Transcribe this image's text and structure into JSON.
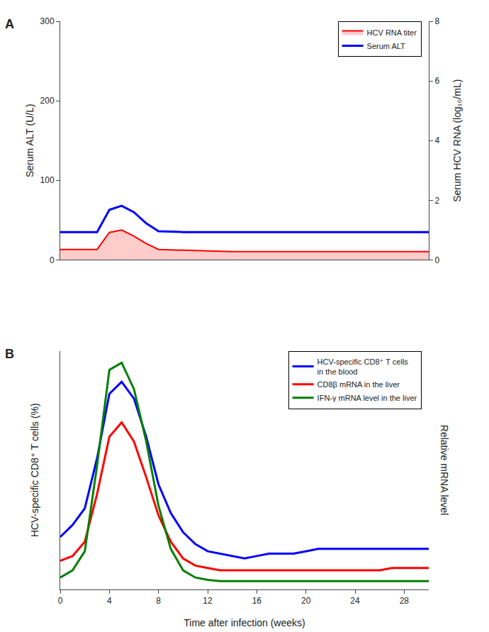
{
  "chart_data": [
    {
      "type": "line",
      "annotations": [
        "A"
      ],
      "xlim": [
        0,
        30
      ],
      "ylim": [
        0,
        300
      ],
      "yticks": [
        0,
        100,
        200,
        300
      ],
      "y2lim": [
        0,
        8
      ],
      "y2ticks": [
        0,
        2,
        4,
        6,
        8
      ],
      "ylabel": "Serum ALT (U/L)",
      "y2label": "Serum HCV RNA (log₁₀/mL)",
      "tick_labels": "y",
      "grid": false,
      "legend": "upper right",
      "series": [
        {
          "name": "HCV RNA titer",
          "type": "area",
          "color": "#ff0000",
          "axis": "y2",
          "x": [
            0,
            1,
            2,
            3,
            4,
            5,
            6,
            7,
            8,
            10,
            12,
            14,
            16,
            18,
            20,
            22,
            24,
            26,
            28,
            30
          ],
          "values": [
            0.35,
            0.35,
            0.35,
            0.35,
            0.92,
            1.0,
            0.8,
            0.55,
            0.35,
            0.32,
            0.3,
            0.28,
            0.28,
            0.28,
            0.28,
            0.28,
            0.28,
            0.28,
            0.28,
            0.28
          ]
        },
        {
          "name": "Serum ALT",
          "type": "line",
          "color": "#0000ff",
          "x": [
            0,
            1,
            2,
            3,
            4,
            5,
            6,
            7,
            8,
            10,
            12,
            14,
            16,
            18,
            20,
            22,
            24,
            26,
            28,
            30
          ],
          "values": [
            35,
            35,
            35,
            35,
            63,
            68,
            60,
            46,
            36,
            35,
            35,
            35,
            35,
            35,
            35,
            35,
            35,
            35,
            35,
            35
          ]
        }
      ]
    },
    {
      "type": "line",
      "annotations": [
        "B"
      ],
      "xlim": [
        0,
        30
      ],
      "xticks": [
        0,
        4,
        8,
        12,
        16,
        20,
        24,
        28
      ],
      "ylim": [
        0,
        1
      ],
      "xlabel": "Time after infection (weeks)",
      "ylabel": "HCV-specific CD8⁺ T cells (%)",
      "y2label": "Relative mRNA level",
      "tick_labels": "x",
      "grid": false,
      "legend": "upper right",
      "series": [
        {
          "name": "HCV-specific CD8⁺ T cells\nin the blood",
          "color": "#0000ff",
          "x": [
            0,
            1,
            2,
            3,
            4,
            5,
            6,
            7,
            8,
            9,
            10,
            11,
            12,
            13,
            14,
            15,
            16,
            17,
            18,
            19,
            20,
            21,
            22,
            23,
            24,
            25,
            26,
            27,
            28,
            30
          ],
          "values": [
            0.22,
            0.27,
            0.34,
            0.55,
            0.82,
            0.87,
            0.8,
            0.64,
            0.44,
            0.32,
            0.24,
            0.19,
            0.16,
            0.15,
            0.14,
            0.13,
            0.14,
            0.15,
            0.15,
            0.15,
            0.16,
            0.17,
            0.17,
            0.17,
            0.17,
            0.17,
            0.17,
            0.17,
            0.17,
            0.17
          ]
        },
        {
          "name": "CD8β mRNA in the liver",
          "color": "#ff0000",
          "x": [
            0,
            1,
            2,
            3,
            4,
            5,
            6,
            7,
            8,
            9,
            10,
            11,
            12,
            13,
            14,
            15,
            16,
            17,
            18,
            19,
            20,
            21,
            22,
            23,
            24,
            25,
            26,
            27,
            28,
            30
          ],
          "values": [
            0.12,
            0.14,
            0.2,
            0.4,
            0.64,
            0.7,
            0.62,
            0.47,
            0.31,
            0.2,
            0.13,
            0.1,
            0.09,
            0.08,
            0.08,
            0.08,
            0.08,
            0.08,
            0.08,
            0.08,
            0.08,
            0.08,
            0.08,
            0.08,
            0.08,
            0.08,
            0.08,
            0.09,
            0.09,
            0.09
          ]
        },
        {
          "name": "IFN-γ mRNA level in the liver",
          "color": "#008000",
          "x": [
            0,
            1,
            2,
            3,
            4,
            5,
            6,
            7,
            8,
            9,
            10,
            11,
            12,
            13,
            14,
            15,
            16,
            17,
            18,
            19,
            20,
            21,
            22,
            23,
            24,
            25,
            26,
            27,
            28,
            30
          ],
          "values": [
            0.05,
            0.08,
            0.16,
            0.52,
            0.92,
            0.95,
            0.84,
            0.62,
            0.35,
            0.17,
            0.08,
            0.05,
            0.04,
            0.035,
            0.035,
            0.035,
            0.035,
            0.035,
            0.035,
            0.035,
            0.035,
            0.035,
            0.035,
            0.035,
            0.035,
            0.035,
            0.035,
            0.035,
            0.035,
            0.035
          ]
        }
      ]
    }
  ]
}
